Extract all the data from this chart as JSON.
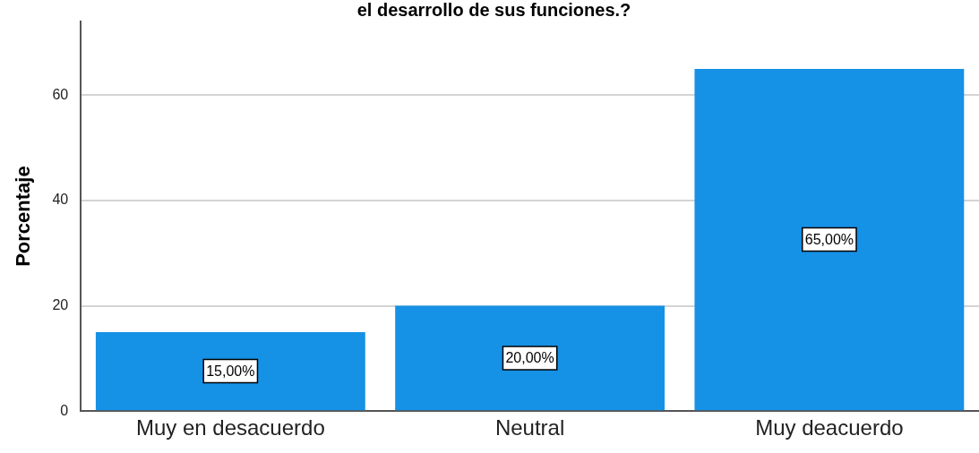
{
  "chart_data": {
    "type": "bar",
    "title": "el desarrollo de sus funciones.?",
    "ylabel": "Porcentaje",
    "categories": [
      "Muy en desacuerdo",
      "Neutral",
      "Muy deacuerdo"
    ],
    "values": [
      15,
      20,
      65
    ],
    "value_labels": [
      "15,00%",
      "20,00%",
      "65,00%"
    ],
    "color": "#1591e6",
    "ylim": [
      0,
      74
    ],
    "yticks": [
      0,
      20,
      40,
      60
    ],
    "grid": "y",
    "legend": false
  }
}
